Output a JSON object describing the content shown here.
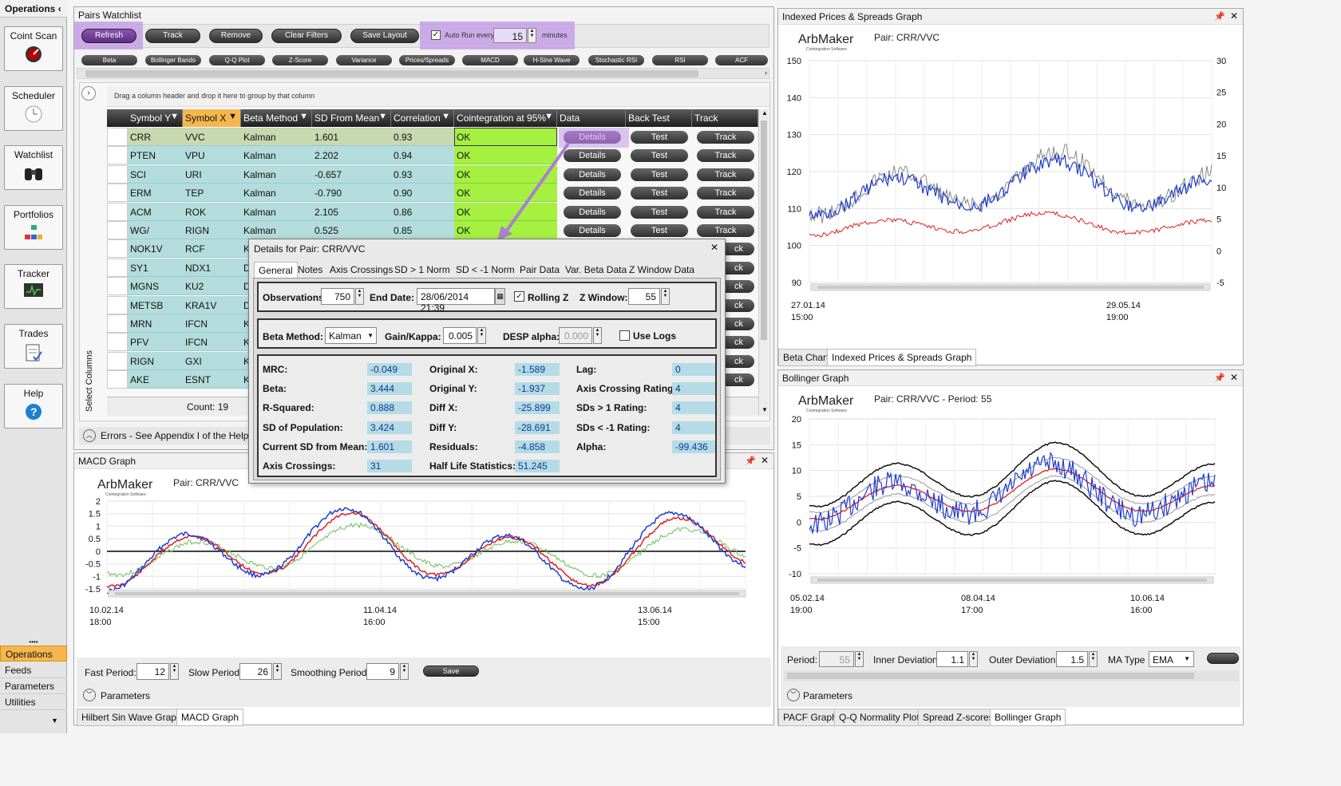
{
  "sidebar": {
    "header": "Operations",
    "items": [
      {
        "label": "Coint Scan",
        "icon": "gauge-icon"
      },
      {
        "label": "Scheduler",
        "icon": "clock-icon"
      },
      {
        "label": "Watchlist",
        "icon": "binoculars-icon"
      },
      {
        "label": "Portfolios",
        "icon": "org-chart-icon"
      },
      {
        "label": "Tracker",
        "icon": "monitor-icon"
      },
      {
        "label": "Trades",
        "icon": "clipboard-icon"
      },
      {
        "label": "Help",
        "icon": "help-icon"
      }
    ],
    "nav": [
      "Operations",
      "Feeds",
      "Parameters",
      "Utilities"
    ]
  },
  "watchlist": {
    "title": "Pairs Watchlist",
    "toolbar": {
      "refresh": "Refresh",
      "track": "Track",
      "remove": "Remove",
      "clear": "Clear Filters",
      "save": "Save Layout",
      "autorun": "Auto Run every",
      "autorun_value": "15",
      "minutes": "minutes"
    },
    "tabs": [
      "Beta",
      "Bollinger Bands",
      "Q-Q Plot",
      "Z-Score",
      "Variance",
      "Prices/Spreads",
      "MACD",
      "H-Sine Wave",
      "Stochastic RSI",
      "RSI",
      "ACF"
    ],
    "group_hint": "Drag a column header and drop it here to group by that column",
    "select_columns": "Select Columns",
    "columns": [
      "Symbol Y",
      "Symbol X",
      "Beta Method",
      "SD From Mean",
      "Correlation",
      "Cointegration at 95%",
      "Data",
      "Back Test",
      "Track"
    ],
    "rows": [
      [
        "CRR",
        "VVC",
        "Kalman",
        "1.601",
        "0.93",
        "OK"
      ],
      [
        "PTEN",
        "VPU",
        "Kalman",
        "2.202",
        "0.94",
        "OK"
      ],
      [
        "SCI",
        "URI",
        "Kalman",
        "-0.657",
        "0.93",
        "OK"
      ],
      [
        "ERM",
        "TEP",
        "Kalman",
        "-0.790",
        "0.90",
        "OK"
      ],
      [
        "ACM",
        "ROK",
        "Kalman",
        "2.105",
        "0.86",
        "OK"
      ],
      [
        "WG/",
        "RIGN",
        "Kalman",
        "0.525",
        "0.85",
        "OK"
      ],
      [
        "NOK1V",
        "RCF",
        "K",
        "",
        "",
        ""
      ],
      [
        "SY1",
        "NDX1",
        "D",
        "",
        "",
        ""
      ],
      [
        "MGNS",
        "KU2",
        "D",
        "",
        "",
        ""
      ],
      [
        "METSB",
        "KRA1V",
        "D",
        "",
        "",
        ""
      ],
      [
        "MRN",
        "IFCN",
        "K",
        "",
        "",
        ""
      ],
      [
        "PFV",
        "IFCN",
        "K",
        "",
        "",
        ""
      ],
      [
        "RIGN",
        "GXI",
        "K",
        "",
        "",
        ""
      ],
      [
        "AKE",
        "ESNT",
        "K",
        "",
        "",
        ""
      ]
    ],
    "btn_details": "Details",
    "btn_test": "Test",
    "btn_track": "Track",
    "btn_track_short": "ck",
    "count": "Count: 19",
    "errors": "Errors - See Appendix I of the Help fil"
  },
  "details": {
    "title": "Details for Pair: CRR/VVC",
    "tabs": [
      "General",
      "Notes",
      "Axis Crossings",
      "SD > 1 Norm",
      "SD < -1 Norm",
      "Pair Data",
      "Var. Beta Data",
      "Z Window Data"
    ],
    "observations_label": "Observations",
    "observations": "750",
    "end_date_label": "End Date:",
    "end_date": "28/06/2014 21:39",
    "rolling_z": "Rolling Z",
    "z_window_label": "Z Window:",
    "z_window": "55",
    "beta_method_label": "Beta Method:",
    "beta_method": "Kalman",
    "gain_label": "Gain/Kappa:",
    "gain": "0.005",
    "desp_label": "DESP alpha:",
    "desp": "0.000",
    "use_logs": "Use Logs",
    "stats": [
      [
        [
          "MRC:",
          "-0.049"
        ],
        [
          "Original X:",
          "-1.589"
        ],
        [
          "Lag:",
          "0"
        ]
      ],
      [
        [
          "Beta:",
          "3.444"
        ],
        [
          "Original Y:",
          "-1.937"
        ],
        [
          "Axis Crossing Rating:",
          "4"
        ]
      ],
      [
        [
          "R-Squared:",
          "0.888"
        ],
        [
          "Diff X:",
          "-25.899"
        ],
        [
          "SDs > 1 Rating:",
          "4"
        ]
      ],
      [
        [
          "SD of Population:",
          "3.424"
        ],
        [
          "Diff Y:",
          "-28.691"
        ],
        [
          "SDs < -1 Rating:",
          "4"
        ]
      ],
      [
        [
          "Current SD from Mean:",
          "1.601"
        ],
        [
          "Residuals:",
          "-4.858"
        ],
        [
          "Alpha:",
          "-99.436"
        ]
      ],
      [
        [
          "Axis Crossings:",
          "31"
        ],
        [
          "Half Life Statistics:",
          "51.245"
        ],
        [
          "",
          ""
        ]
      ]
    ]
  },
  "macd": {
    "title": "MACD Graph",
    "logo": "ArbMaker",
    "logo_sub": "Cointegration Software",
    "pair": "Pair: CRR/VVC",
    "x_ticks": [
      [
        "10.02.14",
        "18:00"
      ],
      [
        "11.04.14",
        "16:00"
      ],
      [
        "13.06.14",
        "15:00"
      ]
    ],
    "fast_label": "Fast Period:",
    "fast": "12",
    "slow_label": "Slow Period",
    "slow": "26",
    "smooth_label": "Smoothing Period",
    "smooth": "9",
    "save": "Save",
    "params": "Parameters",
    "bottom_tabs": [
      "Hilbert Sin Wave Graph",
      "MACD Graph"
    ]
  },
  "indexed": {
    "title": "Indexed Prices & Spreads Graph",
    "pair": "Pair: CRR/VVC",
    "x_ticks": [
      [
        "27.01.14",
        "15:00"
      ],
      [
        "29.05.14",
        "19:00"
      ]
    ],
    "bottom_tabs": [
      "Beta Chart",
      "Indexed Prices & Spreads Graph"
    ]
  },
  "bollinger": {
    "title": "Bollinger Graph",
    "pair": "Pair: CRR/VVC - Period: 55",
    "x_ticks": [
      [
        "05.02.14",
        "19:00"
      ],
      [
        "08.04.14",
        "17:00"
      ],
      [
        "10.06.14",
        "16:00"
      ]
    ],
    "period_label": "Period:",
    "period": "55",
    "inner_label": "Inner Deviation",
    "inner": "1.1",
    "outer_label": "Outer Deviation",
    "outer": "1.5",
    "ma_label": "MA Type",
    "ma": "EMA",
    "params": "Parameters",
    "bottom_tabs": [
      "PACF Graph",
      "Q-Q Normality Plot",
      "Spread Z-scores",
      "Bollinger Graph"
    ]
  },
  "chart_data": [
    {
      "type": "line",
      "title": "MACD Graph",
      "ylim": [
        -1.5,
        2
      ],
      "y_ticks": [
        "2",
        "1.5",
        "1",
        "0.5",
        "0",
        "-0.5",
        "-1",
        "-1.5"
      ],
      "series": []
    },
    {
      "type": "line",
      "title": "Indexed Prices & Spreads Graph",
      "ylim": [
        90,
        150
      ],
      "y_ticks": [
        "150",
        "140",
        "130",
        "120",
        "110",
        "100",
        "90"
      ],
      "y2lim": [
        -5,
        30
      ],
      "y2_ticks": [
        "30",
        "25",
        "20",
        "15",
        "10",
        "5",
        "0",
        "-5"
      ],
      "series": []
    },
    {
      "type": "line",
      "title": "Bollinger Graph",
      "ylim": [
        -10,
        20
      ],
      "y_ticks": [
        "20",
        "15",
        "10",
        "5",
        "0",
        "-5",
        "-10"
      ],
      "series": []
    }
  ],
  "colors": {
    "accent": "#c39be6",
    "ok": "#a5f041",
    "teal": "#b4dcdc",
    "value": "#b5dbe7",
    "nav_active": "#f5b74d"
  }
}
